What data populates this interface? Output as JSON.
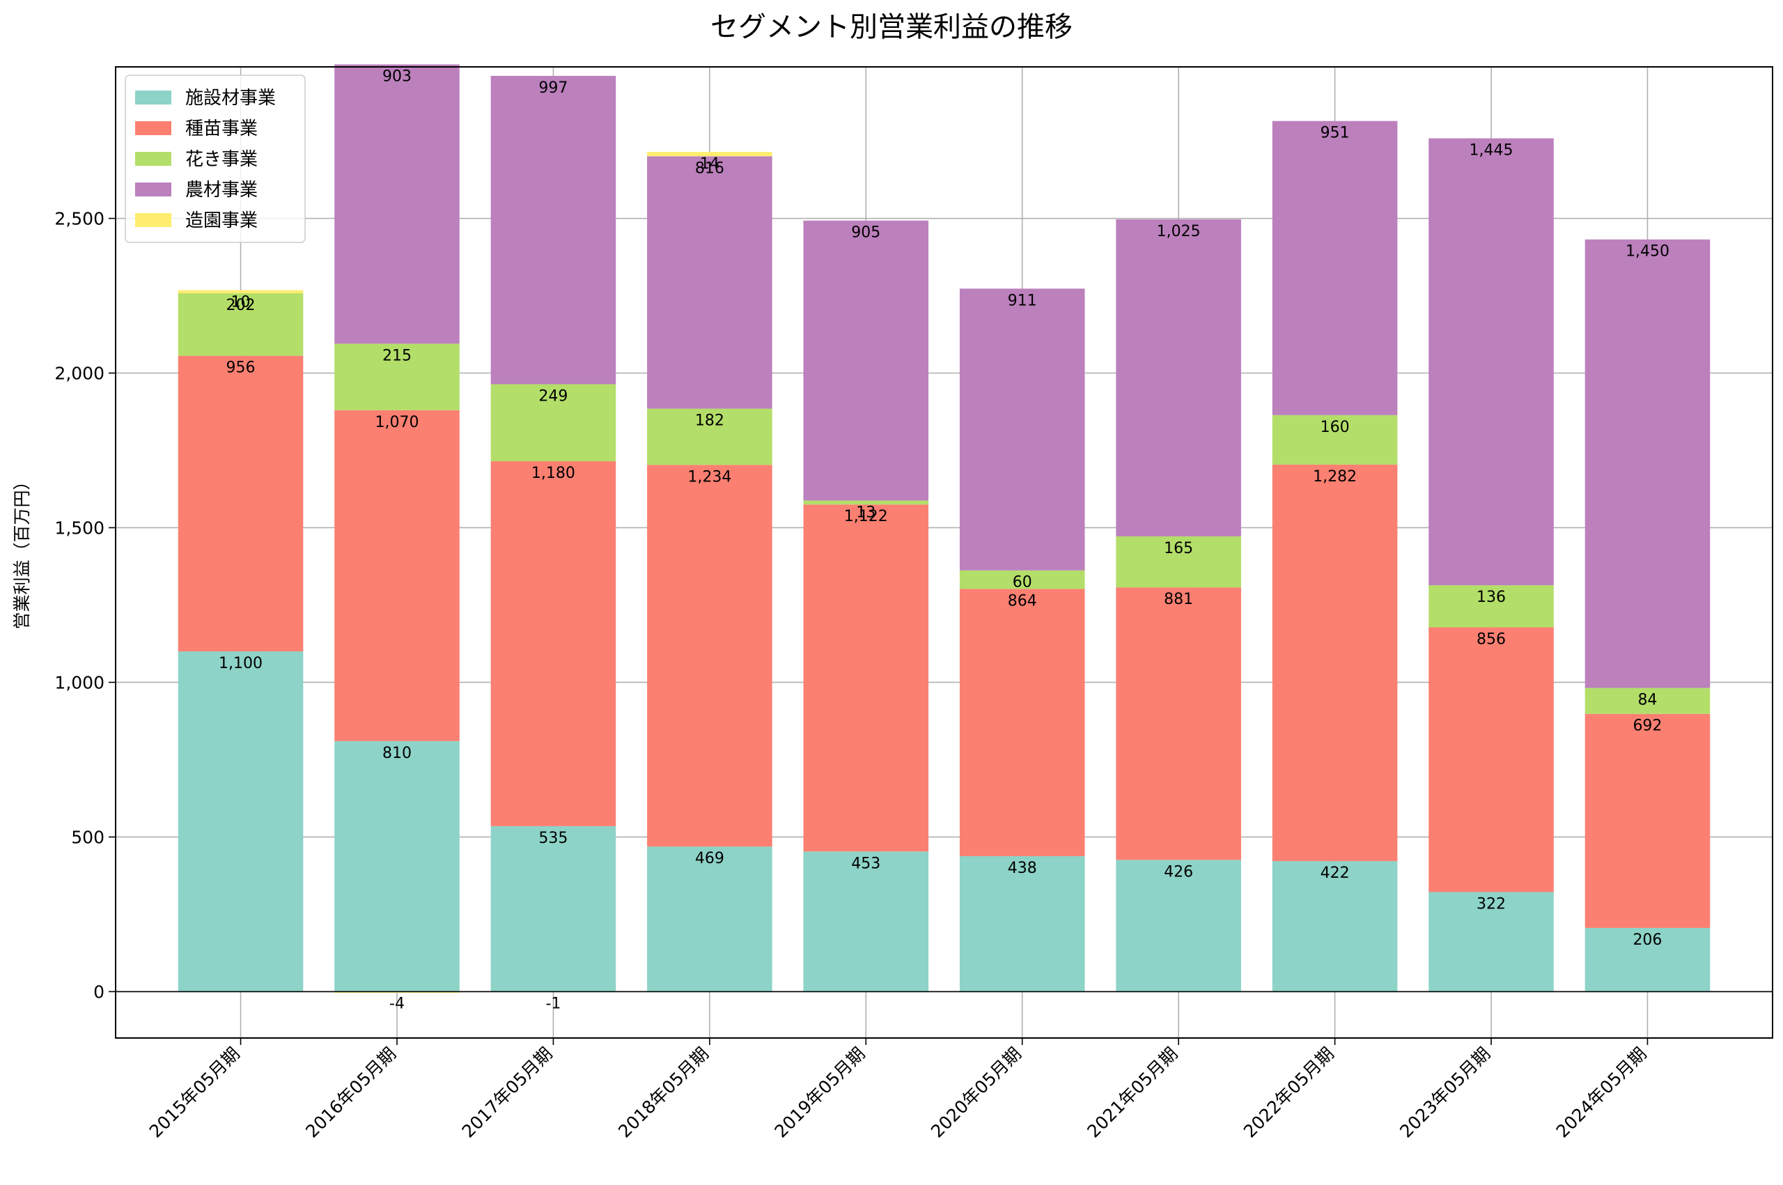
{
  "chart_data": {
    "type": "bar",
    "stacked": true,
    "title": "セグメント別営業利益の推移",
    "ylabel": "営業利益（百万円）",
    "xlabel": "",
    "ylim": [
      -150,
      2990
    ],
    "yticks": [
      0,
      500,
      1000,
      1500,
      2000,
      2500
    ],
    "ytick_labels": [
      "0",
      "500",
      "1,000",
      "1,500",
      "2,000",
      "2,500"
    ],
    "grid": true,
    "legend_position": "top-left",
    "categories": [
      "2015年05月期",
      "2016年05月期",
      "2017年05月期",
      "2018年05月期",
      "2019年05月期",
      "2020年05月期",
      "2021年05月期",
      "2022年05月期",
      "2023年05月期",
      "2024年05月期"
    ],
    "series": [
      {
        "name": "施設材事業",
        "color": "#8dd3c7",
        "values": [
          1100,
          810,
          535,
          469,
          453,
          438,
          426,
          422,
          322,
          206
        ]
      },
      {
        "name": "種苗事業",
        "color": "#fb8072",
        "values": [
          956,
          1070,
          1180,
          1234,
          1122,
          864,
          881,
          1282,
          856,
          692
        ]
      },
      {
        "name": "花き事業",
        "color": "#b3de69",
        "values": [
          202,
          215,
          249,
          182,
          13,
          60,
          165,
          160,
          136,
          84
        ]
      },
      {
        "name": "農材事業",
        "color": "#bc80bd",
        "values": [
          null,
          903,
          997,
          816,
          905,
          911,
          1025,
          951,
          1445,
          1450
        ]
      },
      {
        "name": "造園事業",
        "color": "#ffed6f",
        "values": [
          10,
          -4,
          -1,
          14,
          null,
          null,
          null,
          null,
          null,
          null
        ]
      }
    ]
  }
}
